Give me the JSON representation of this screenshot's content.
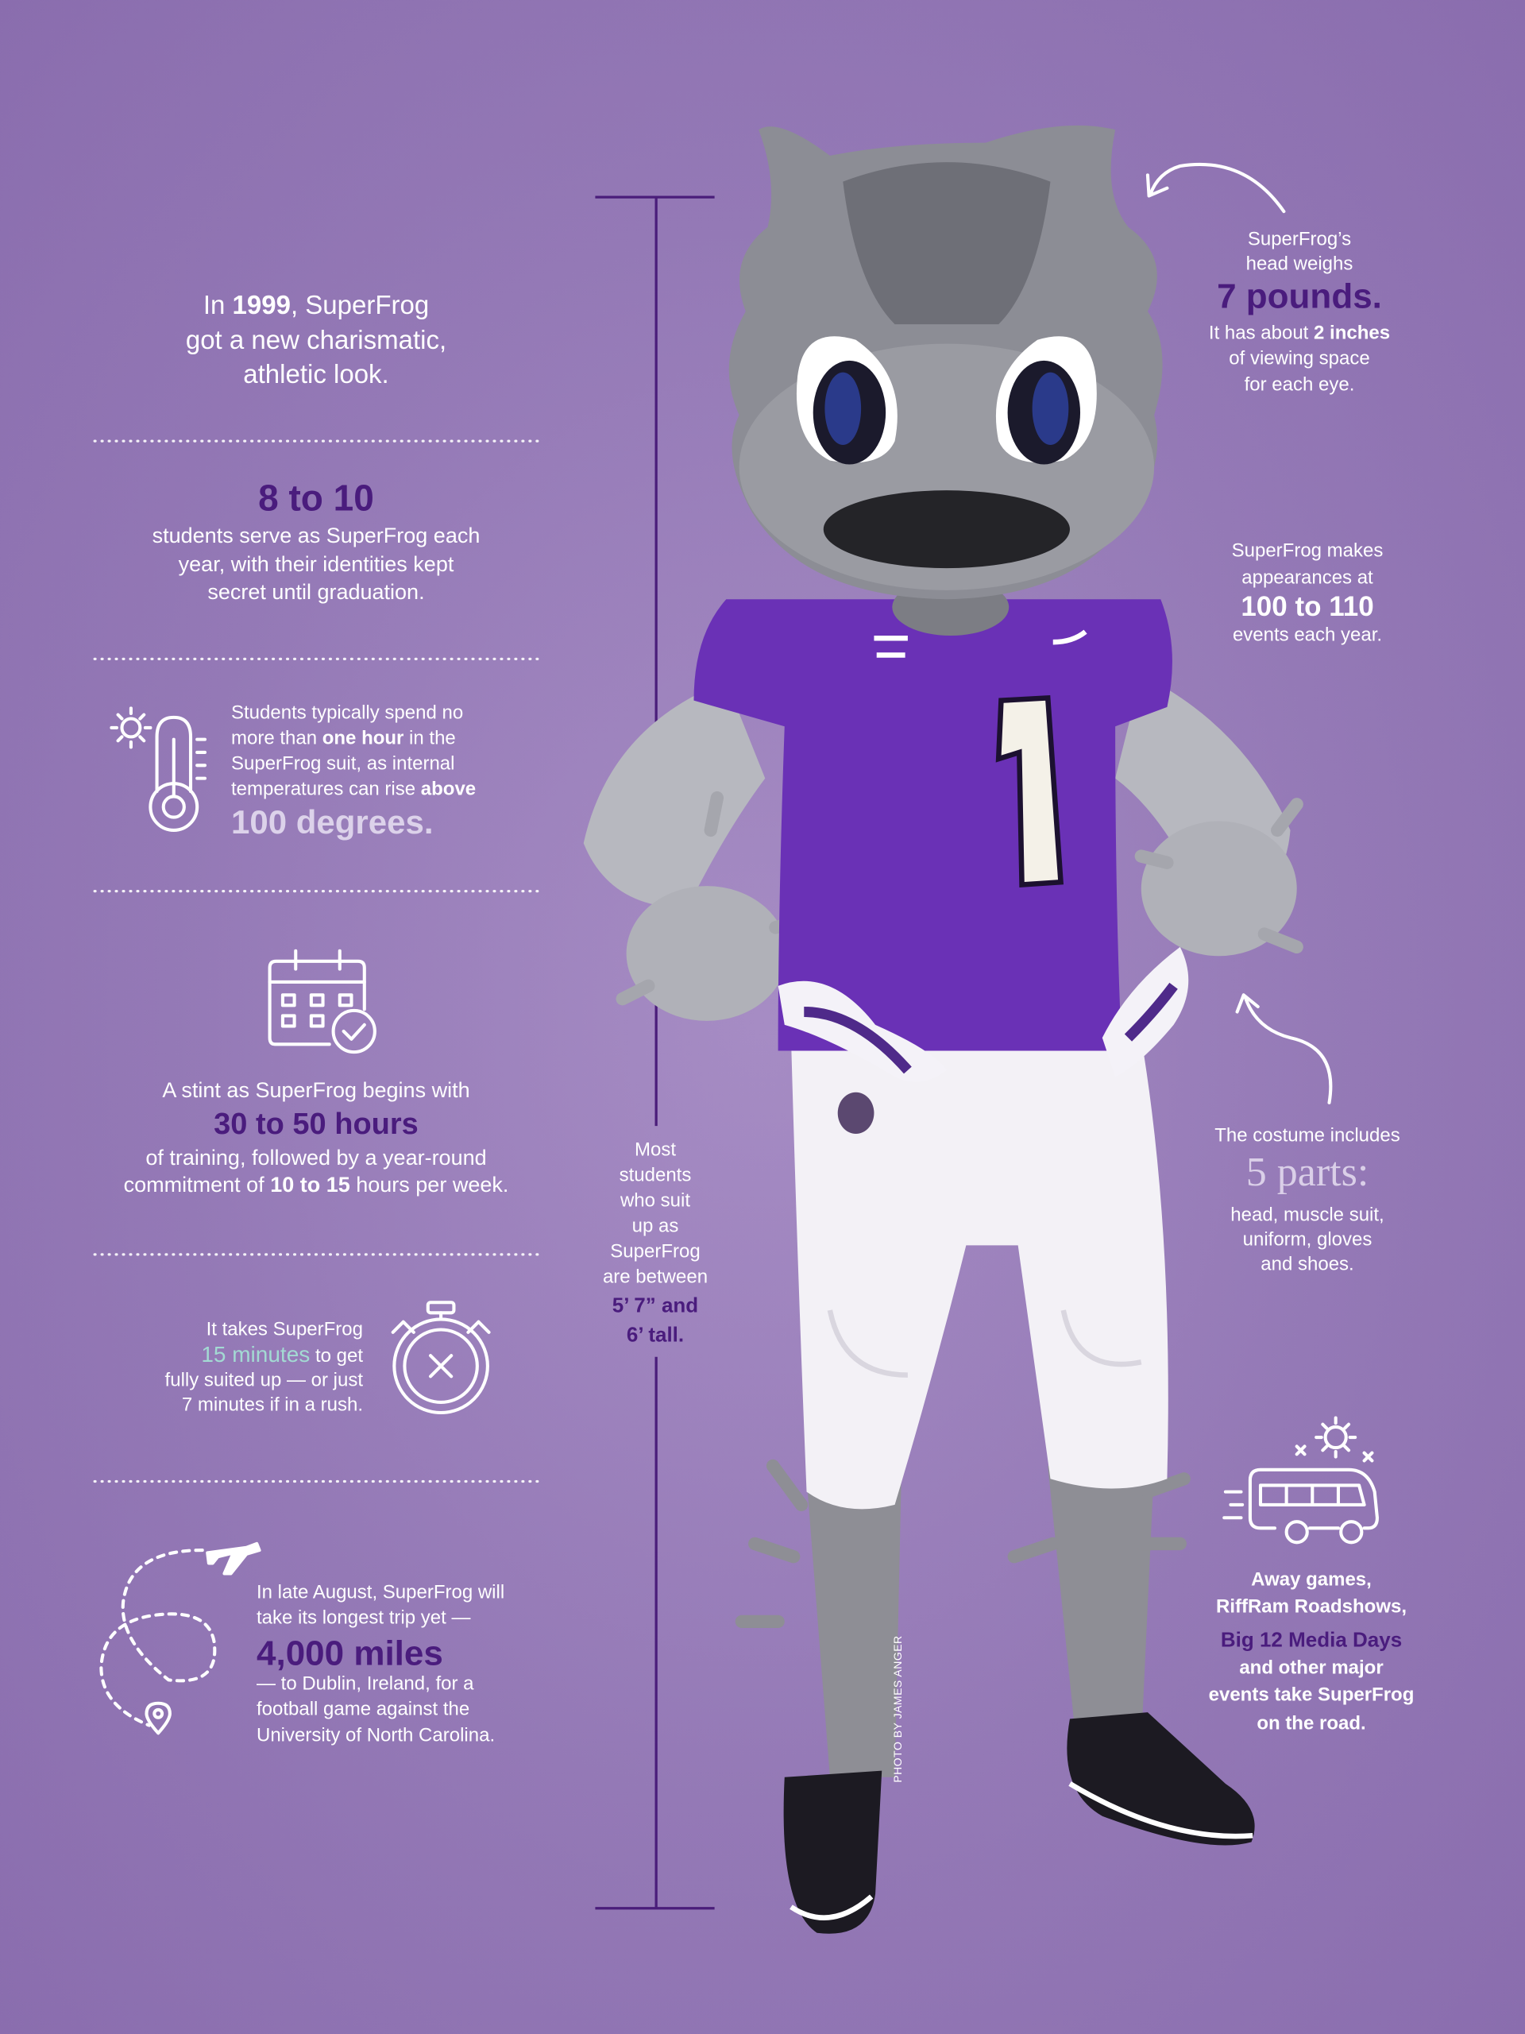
{
  "look": [
    "In ",
    "1999",
    ", SuperFrog",
    "got a new charismatic,",
    "athletic look."
  ],
  "students": {
    "number": "8 to 10",
    "lines": [
      "students serve as SuperFrog each",
      "year, with their identities kept",
      "secret until graduation."
    ]
  },
  "heat": {
    "runs": [
      "Students typically spend no",
      "more than ",
      "one hour",
      " in the",
      "SuperFrog suit, as internal",
      "temperatures can rise ",
      "above"
    ],
    "highlight": "100 degrees."
  },
  "training": {
    "lines": [
      "A stint as SuperFrog begins with"
    ],
    "highlight": "30 to 50 hours",
    "runs": [
      "of training, followed by a year-round",
      "commitment of ",
      "10 to 15",
      " hours per week."
    ]
  },
  "suit_up": {
    "lines": [
      "It takes SuperFrog"
    ],
    "highlight": "15 minutes",
    "rest": [
      " to get",
      "fully suited up — or just",
      "7 minutes if in a rush."
    ]
  },
  "trip": {
    "lines": [
      "In late August, SuperFrog will",
      "take its longest trip yet —"
    ],
    "highlight": "4,000 miles",
    "rest": [
      "— to Dublin, Ireland, for a",
      "football game against the",
      "University of North Carolina."
    ]
  },
  "height": {
    "lines": [
      "Most",
      "students",
      "who suit",
      "up as",
      "SuperFrog",
      "are between"
    ],
    "highlight": [
      "5’ 7” and",
      "6’ tall."
    ]
  },
  "head": {
    "lines": [
      "SuperFrog’s",
      "head weighs"
    ],
    "highlight": "7 pounds.",
    "runs": [
      "It has about ",
      "2 inches",
      "of viewing space",
      "for each eye."
    ]
  },
  "appearances": {
    "lines": [
      "SuperFrog makes",
      "appearances at"
    ],
    "highlight": "100 to 110",
    "rest": [
      "events each year."
    ]
  },
  "costume": {
    "lines": [
      "The costume includes"
    ],
    "highlight": "5 parts:",
    "rest": [
      "head, muscle suit,",
      "uniform, gloves",
      "and shoes."
    ]
  },
  "travel": {
    "lines": [
      "Away games,",
      "RiffRam Roadshows,"
    ],
    "highlight": "Big 12 Media Days",
    "rest": [
      "and other major",
      "events take SuperFrog",
      "on the road."
    ]
  },
  "credit": "PHOTO BY JAMES ANGER"
}
